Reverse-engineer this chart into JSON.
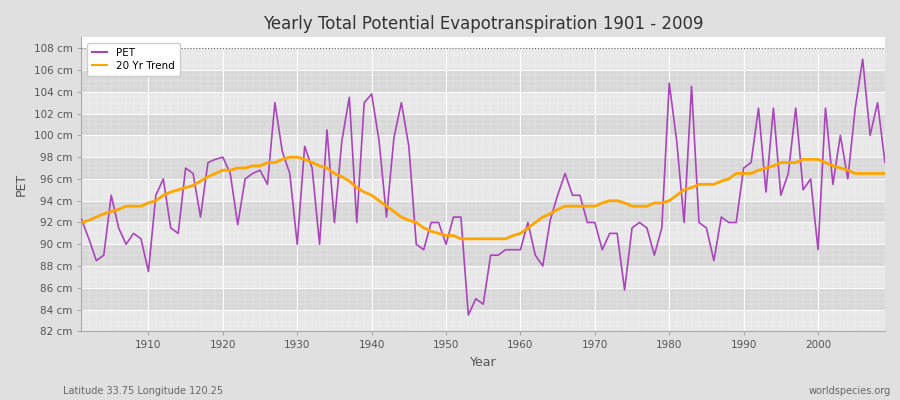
{
  "title": "Yearly Total Potential Evapotranspiration 1901 - 2009",
  "xlabel": "Year",
  "ylabel": "PET",
  "footnote_left": "Latitude 33.75 Longitude 120.25",
  "footnote_right": "worldspecies.org",
  "ylim": [
    82,
    109
  ],
  "yticks": [
    82,
    84,
    86,
    88,
    90,
    92,
    94,
    96,
    98,
    100,
    102,
    104,
    106,
    108
  ],
  "ytick_labels": [
    "82 cm",
    "84 cm",
    "86 cm",
    "88 cm",
    "90 cm",
    "92 cm",
    "94 cm",
    "96 cm",
    "98 cm",
    "100 cm",
    "102 cm",
    "104 cm",
    "106 cm",
    "108 cm"
  ],
  "hline_y": 108,
  "pet_color": "#AA44BB",
  "trend_color": "#FFA500",
  "bg_color": "#E0E0E0",
  "plot_bg_light": "#E8E8E8",
  "plot_bg_dark": "#D8D8D8",
  "grid_color": "#FFFFFF",
  "years": [
    1901,
    1902,
    1903,
    1904,
    1905,
    1906,
    1907,
    1908,
    1909,
    1910,
    1911,
    1912,
    1913,
    1914,
    1915,
    1916,
    1917,
    1918,
    1919,
    1920,
    1921,
    1922,
    1923,
    1924,
    1925,
    1926,
    1927,
    1928,
    1929,
    1930,
    1931,
    1932,
    1933,
    1934,
    1935,
    1936,
    1937,
    1938,
    1939,
    1940,
    1941,
    1942,
    1943,
    1944,
    1945,
    1946,
    1947,
    1948,
    1949,
    1950,
    1951,
    1952,
    1953,
    1954,
    1955,
    1956,
    1957,
    1958,
    1959,
    1960,
    1961,
    1962,
    1963,
    1964,
    1965,
    1966,
    1967,
    1968,
    1969,
    1970,
    1971,
    1972,
    1973,
    1974,
    1975,
    1976,
    1977,
    1978,
    1979,
    1980,
    1981,
    1982,
    1983,
    1984,
    1985,
    1986,
    1987,
    1988,
    1989,
    1990,
    1991,
    1992,
    1993,
    1994,
    1995,
    1996,
    1997,
    1998,
    1999,
    2000,
    2001,
    2002,
    2003,
    2004,
    2005,
    2006,
    2007,
    2008,
    2009
  ],
  "pet_values": [
    92.3,
    90.5,
    88.5,
    89.0,
    94.5,
    91.5,
    90.0,
    91.0,
    90.5,
    87.5,
    94.5,
    96.0,
    91.5,
    91.0,
    97.0,
    96.5,
    92.5,
    97.5,
    97.8,
    98.0,
    96.5,
    91.8,
    96.0,
    96.5,
    96.8,
    95.5,
    103.0,
    98.5,
    96.5,
    90.0,
    99.0,
    97.0,
    90.0,
    100.5,
    92.0,
    99.5,
    103.5,
    92.0,
    103.0,
    103.8,
    99.5,
    92.5,
    99.8,
    103.0,
    99.0,
    90.0,
    89.5,
    92.0,
    92.0,
    90.0,
    92.5,
    92.5,
    83.5,
    85.0,
    84.5,
    89.0,
    89.0,
    89.5,
    89.5,
    89.5,
    92.0,
    89.0,
    88.0,
    92.2,
    94.5,
    96.5,
    94.5,
    94.5,
    92.0,
    92.0,
    89.5,
    91.0,
    91.0,
    85.8,
    91.5,
    92.0,
    91.5,
    89.0,
    91.5,
    104.8,
    99.5,
    92.0,
    104.5,
    92.0,
    91.5,
    88.5,
    92.5,
    92.0,
    92.0,
    97.0,
    97.5,
    102.5,
    94.8,
    102.5,
    94.5,
    96.5,
    102.5,
    95.0,
    96.0,
    89.5,
    102.5,
    95.5,
    100.0,
    96.0,
    102.5,
    107.0,
    100.0,
    103.0,
    97.5
  ],
  "trend_values_all": [
    92.0,
    92.2,
    92.5,
    92.8,
    93.0,
    93.2,
    93.5,
    93.5,
    93.5,
    93.8,
    94.0,
    94.5,
    94.8,
    95.0,
    95.2,
    95.4,
    95.8,
    96.2,
    96.5,
    96.8,
    96.8,
    97.0,
    97.0,
    97.2,
    97.2,
    97.5,
    97.5,
    97.8,
    98.0,
    98.0,
    97.8,
    97.5,
    97.2,
    97.0,
    96.5,
    96.2,
    95.8,
    95.2,
    94.8,
    94.5,
    94.0,
    93.5,
    93.0,
    92.5,
    92.2,
    92.0,
    91.5,
    91.2,
    91.0,
    90.8,
    90.8,
    90.5,
    90.5,
    90.5,
    90.5,
    90.5,
    90.5,
    90.5,
    90.8,
    91.0,
    91.5,
    92.0,
    92.5,
    92.8,
    93.2,
    93.5,
    93.5,
    93.5,
    93.5,
    93.5,
    93.8,
    94.0,
    94.0,
    93.8,
    93.5,
    93.5,
    93.5,
    93.8,
    93.8,
    94.0,
    94.5,
    95.0,
    95.2,
    95.5,
    95.5,
    95.5,
    95.8,
    96.0,
    96.5,
    96.5,
    96.5,
    96.8,
    97.0,
    97.2,
    97.5,
    97.5,
    97.5,
    97.8,
    97.8,
    97.8,
    97.5,
    97.2,
    97.0,
    96.8,
    96.5,
    96.5,
    96.5,
    96.5,
    96.5
  ]
}
